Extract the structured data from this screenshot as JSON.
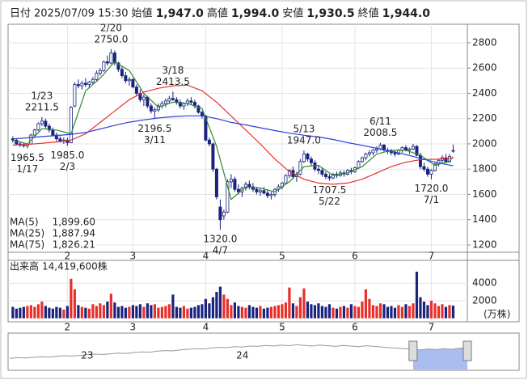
{
  "header": {
    "date_label": "日付",
    "date": "2025/07/09 15:30",
    "fields": [
      {
        "label": "始値",
        "value": "1,947.0",
        "color": "#000000"
      },
      {
        "label": "高値",
        "value": "1,994.0",
        "color": "#e60000"
      },
      {
        "label": "安値",
        "value": "1,930.5",
        "color": "#008000"
      },
      {
        "label": "終値",
        "value": "1,944.0",
        "color": "#000000"
      }
    ]
  },
  "chart_data": {
    "type": "candlestick",
    "xlim": [
      -1.3,
      124.9
    ],
    "ylim": [
      1142,
      2947
    ],
    "yticks": [
      1200,
      1400,
      1600,
      1800,
      2000,
      2200,
      2400,
      2600,
      2800
    ],
    "grid": true,
    "xticks": [
      {
        "value": 15,
        "label": "2"
      },
      {
        "value": 33,
        "label": "3"
      },
      {
        "value": 53,
        "label": "4"
      },
      {
        "value": 74,
        "label": "5"
      },
      {
        "value": 94,
        "label": "6"
      },
      {
        "value": 115,
        "label": "7"
      }
    ],
    "up_color": "#ffffff",
    "down_color": "#1a237e",
    "ohlc": [
      [
        2040,
        2060,
        2010,
        2030
      ],
      [
        2030,
        2045,
        1990,
        2000
      ],
      [
        2000,
        2020,
        1975,
        1990
      ],
      [
        1990,
        2010,
        1970,
        1985
      ],
      [
        1985,
        2000,
        1965.5,
        1995
      ],
      [
        2000,
        2080,
        1995,
        2070
      ],
      [
        2070,
        2120,
        2050,
        2110
      ],
      [
        2110,
        2170,
        2100,
        2160
      ],
      [
        2160,
        2211.5,
        2140,
        2180
      ],
      [
        2180,
        2200,
        2120,
        2140
      ],
      [
        2140,
        2160,
        2090,
        2110
      ],
      [
        2110,
        2130,
        2060,
        2070
      ],
      [
        2070,
        2090,
        2020,
        2040
      ],
      [
        2040,
        2060,
        2010,
        2020
      ],
      [
        2020,
        2050,
        2000,
        2030
      ],
      [
        2030,
        2050,
        1985,
        2010
      ],
      [
        2010,
        2300,
        2005,
        2290
      ],
      [
        2300,
        2490,
        2290,
        2470
      ],
      [
        2470,
        2510,
        2440,
        2460
      ],
      [
        2460,
        2500,
        2430,
        2480
      ],
      [
        2480,
        2520,
        2450,
        2470
      ],
      [
        2470,
        2500,
        2440,
        2490
      ],
      [
        2490,
        2530,
        2470,
        2510
      ],
      [
        2510,
        2580,
        2500,
        2560
      ],
      [
        2560,
        2600,
        2540,
        2580
      ],
      [
        2580,
        2660,
        2570,
        2650
      ],
      [
        2650,
        2700,
        2620,
        2640
      ],
      [
        2640,
        2750,
        2630,
        2720
      ],
      [
        2720,
        2740,
        2620,
        2640
      ],
      [
        2640,
        2650,
        2570,
        2590
      ],
      [
        2590,
        2610,
        2520,
        2540
      ],
      [
        2540,
        2570,
        2480,
        2500
      ],
      [
        2500,
        2530,
        2460,
        2510
      ],
      [
        2510,
        2520,
        2440,
        2450
      ],
      [
        2450,
        2470,
        2380,
        2400
      ],
      [
        2400,
        2430,
        2330,
        2350
      ],
      [
        2350,
        2390,
        2300,
        2370
      ],
      [
        2370,
        2380,
        2280,
        2300
      ],
      [
        2300,
        2320,
        2240,
        2260
      ],
      [
        2260,
        2290,
        2196.5,
        2270
      ],
      [
        2270,
        2320,
        2250,
        2300
      ],
      [
        2300,
        2340,
        2280,
        2320
      ],
      [
        2320,
        2360,
        2290,
        2340
      ],
      [
        2340,
        2380,
        2320,
        2360
      ],
      [
        2360,
        2413.5,
        2340,
        2350
      ],
      [
        2350,
        2370,
        2310,
        2330
      ],
      [
        2330,
        2350,
        2280,
        2300
      ],
      [
        2300,
        2330,
        2270,
        2320
      ],
      [
        2320,
        2360,
        2300,
        2340
      ],
      [
        2340,
        2370,
        2310,
        2330
      ],
      [
        2330,
        2350,
        2280,
        2300
      ],
      [
        2300,
        2310,
        2240,
        2250
      ],
      [
        2250,
        2260,
        2200,
        2220
      ],
      [
        2220,
        2230,
        2020,
        2030
      ],
      [
        2030,
        2050,
        1980,
        2000
      ],
      [
        2000,
        2010,
        1780,
        1800
      ],
      [
        1800,
        1810,
        1560,
        1580
      ],
      [
        1500,
        1560,
        1320,
        1400
      ],
      [
        1430,
        1480,
        1400,
        1460
      ],
      [
        1460,
        1720,
        1450,
        1700
      ],
      [
        1700,
        1760,
        1650,
        1720
      ],
      [
        1720,
        1740,
        1620,
        1640
      ],
      [
        1640,
        1680,
        1600,
        1620
      ],
      [
        1620,
        1660,
        1580,
        1650
      ],
      [
        1650,
        1700,
        1630,
        1680
      ],
      [
        1680,
        1710,
        1640,
        1660
      ],
      [
        1660,
        1690,
        1620,
        1640
      ],
      [
        1640,
        1660,
        1600,
        1620
      ],
      [
        1620,
        1650,
        1590,
        1630
      ],
      [
        1630,
        1660,
        1600,
        1610
      ],
      [
        1610,
        1640,
        1570,
        1590
      ],
      [
        1590,
        1620,
        1560,
        1600
      ],
      [
        1600,
        1650,
        1580,
        1640
      ],
      [
        1640,
        1680,
        1620,
        1660
      ],
      [
        1660,
        1700,
        1640,
        1690
      ],
      [
        1690,
        1760,
        1680,
        1750
      ],
      [
        1750,
        1800,
        1730,
        1790
      ],
      [
        1790,
        1820,
        1720,
        1740
      ],
      [
        1740,
        1780,
        1700,
        1760
      ],
      [
        1760,
        1880,
        1750,
        1860
      ],
      [
        1860,
        1947,
        1850,
        1920
      ],
      [
        1920,
        1930,
        1860,
        1880
      ],
      [
        1880,
        1900,
        1830,
        1850
      ],
      [
        1850,
        1870,
        1780,
        1800
      ],
      [
        1800,
        1830,
        1760,
        1790
      ],
      [
        1790,
        1810,
        1740,
        1760
      ],
      [
        1760,
        1780,
        1720,
        1740
      ],
      [
        1740,
        1760,
        1707.5,
        1730
      ],
      [
        1730,
        1770,
        1720,
        1760
      ],
      [
        1760,
        1780,
        1730,
        1750
      ],
      [
        1750,
        1790,
        1740,
        1770
      ],
      [
        1770,
        1790,
        1740,
        1760
      ],
      [
        1760,
        1800,
        1750,
        1790
      ],
      [
        1790,
        1810,
        1760,
        1780
      ],
      [
        1780,
        1820,
        1770,
        1810
      ],
      [
        1810,
        1870,
        1800,
        1860
      ],
      [
        1860,
        1900,
        1850,
        1890
      ],
      [
        1890,
        1930,
        1870,
        1920
      ],
      [
        1920,
        1950,
        1900,
        1930
      ],
      [
        1930,
        1960,
        1910,
        1950
      ],
      [
        1950,
        1980,
        1930,
        1960
      ],
      [
        1960,
        2008.5,
        1950,
        1990
      ],
      [
        1990,
        2000,
        1940,
        1950
      ],
      [
        1950,
        1970,
        1920,
        1940
      ],
      [
        1940,
        1960,
        1910,
        1930
      ],
      [
        1930,
        1950,
        1900,
        1920
      ],
      [
        1920,
        1960,
        1910,
        1950
      ],
      [
        1950,
        1980,
        1930,
        1970
      ],
      [
        1970,
        1990,
        1940,
        1950
      ],
      [
        1950,
        1970,
        1920,
        1960
      ],
      [
        1960,
        2000,
        1950,
        1980
      ],
      [
        1980,
        1990,
        1900,
        1910
      ],
      [
        1910,
        1930,
        1800,
        1820
      ],
      [
        1820,
        1850,
        1780,
        1800
      ],
      [
        1800,
        1820,
        1740,
        1760
      ],
      [
        1760,
        1800,
        1720,
        1790
      ],
      [
        1790,
        1850,
        1780,
        1840
      ],
      [
        1840,
        1880,
        1820,
        1870
      ],
      [
        1870,
        1910,
        1850,
        1890
      ],
      [
        1890,
        1920,
        1850,
        1860
      ],
      [
        1860,
        1920,
        1850,
        1900
      ],
      [
        1947,
        1994,
        1930.5,
        1944
      ]
    ],
    "series": [
      {
        "name": "MA(5)",
        "color": "#2e8b2e",
        "latest": {
          "value": 1899.6,
          "label": "1,899.60"
        },
        "x": [
          0,
          4,
          8,
          12,
          16,
          20,
          24,
          28,
          32,
          36,
          40,
          44,
          48,
          52,
          56,
          60,
          64,
          68,
          72,
          76,
          80,
          84,
          88,
          92,
          96,
          100,
          104,
          108,
          112,
          116,
          120,
          121
        ],
        "values": [
          2030,
          2000,
          2120,
          2110,
          2080,
          2420,
          2520,
          2650,
          2580,
          2400,
          2290,
          2330,
          2320,
          2280,
          1980,
          1560,
          1660,
          1650,
          1620,
          1700,
          1820,
          1830,
          1750,
          1770,
          1820,
          1920,
          1950,
          1950,
          1910,
          1830,
          1860,
          1899.6
        ]
      },
      {
        "name": "MA(25)",
        "color": "#e8302a",
        "latest": {
          "value": 1887.94,
          "label": "1,887.94"
        },
        "x": [
          0,
          4,
          8,
          12,
          16,
          20,
          24,
          28,
          32,
          36,
          40,
          44,
          48,
          52,
          56,
          60,
          64,
          68,
          72,
          76,
          80,
          84,
          88,
          92,
          96,
          100,
          104,
          108,
          112,
          116,
          120,
          121
        ],
        "values": [
          1990,
          1995,
          2005,
          2015,
          2030,
          2080,
          2170,
          2260,
          2350,
          2410,
          2440,
          2460,
          2465,
          2420,
          2330,
          2220,
          2110,
          2000,
          1880,
          1780,
          1720,
          1690,
          1680,
          1690,
          1720,
          1770,
          1820,
          1855,
          1875,
          1878,
          1886,
          1887.94
        ]
      },
      {
        "name": "MA(75)",
        "color": "#2f3fd8",
        "latest": {
          "value": 1826.21,
          "label": "1,826.21"
        },
        "x": [
          0,
          4,
          8,
          12,
          16,
          20,
          24,
          28,
          32,
          36,
          40,
          44,
          48,
          52,
          56,
          60,
          64,
          68,
          72,
          76,
          80,
          84,
          88,
          92,
          96,
          100,
          104,
          108,
          112,
          116,
          120,
          121
        ],
        "values": [
          2040,
          2048,
          2058,
          2066,
          2076,
          2090,
          2118,
          2146,
          2172,
          2190,
          2205,
          2215,
          2222,
          2222,
          2200,
          2170,
          2150,
          2128,
          2105,
          2085,
          2068,
          2055,
          2035,
          2010,
          1988,
          1965,
          1942,
          1915,
          1885,
          1855,
          1832,
          1826.21
        ]
      }
    ],
    "annotations": [
      {
        "index": 4,
        "kind": "low",
        "date": "1/17",
        "price": {
          "value": 1965.5,
          "label": "1965.5"
        }
      },
      {
        "index": 8,
        "kind": "high",
        "date": "1/23",
        "price": {
          "value": 2211.5,
          "label": "2211.5"
        }
      },
      {
        "index": 15,
        "kind": "low",
        "date": "2/3",
        "price": {
          "value": 1985,
          "label": "1985.0"
        }
      },
      {
        "index": 27,
        "kind": "high",
        "date": "2/20",
        "price": {
          "value": 2750,
          "label": "2750.0"
        }
      },
      {
        "index": 39,
        "kind": "low",
        "date": "3/11",
        "price": {
          "value": 2196.5,
          "label": "2196.5"
        }
      },
      {
        "index": 44,
        "kind": "high",
        "date": "3/18",
        "price": {
          "value": 2413.5,
          "label": "2413.5"
        }
      },
      {
        "index": 57,
        "kind": "low",
        "date": "4/7",
        "price": {
          "value": 1320,
          "label": "1320.0"
        }
      },
      {
        "index": 80,
        "kind": "high",
        "date": "5/13",
        "price": {
          "value": 1947,
          "label": "1947.0"
        }
      },
      {
        "index": 87,
        "kind": "low",
        "date": "5/22",
        "price": {
          "value": 1707.5,
          "label": "1707.5"
        }
      },
      {
        "index": 101,
        "kind": "high",
        "date": "6/11",
        "price": {
          "value": 2008.5,
          "label": "2008.5"
        }
      },
      {
        "index": 115,
        "kind": "low",
        "date": "7/1",
        "price": {
          "value": 1720,
          "label": "1720.0"
        }
      }
    ],
    "volume": {
      "title": "出来高",
      "total": "14,419,600株",
      "unit": "(万株)",
      "up_color": "#e8302a",
      "down_color": "#1a237e",
      "ylim": [
        -400,
        6600
      ],
      "yticks": [
        2000,
        4000
      ],
      "values": [
        1300,
        1100,
        1200,
        1300,
        1400,
        1500,
        1300,
        1600,
        1900,
        1400,
        1200,
        1100,
        1300,
        1200,
        1000,
        1400,
        4500,
        3300,
        1500,
        1300,
        1200,
        1100,
        1600,
        1400,
        1700,
        1500,
        1900,
        2800,
        1800,
        1300,
        1400,
        1200,
        1300,
        1500,
        1400,
        1600,
        1300,
        1700,
        1500,
        1600,
        1200,
        1300,
        1400,
        1600,
        2700,
        1300,
        1200,
        1400,
        1100,
        1200,
        1300,
        1500,
        1600,
        2200,
        1700,
        2400,
        3000,
        3600,
        2700,
        2200,
        1500,
        1800,
        1400,
        1300,
        1200,
        1500,
        1300,
        1200,
        1400,
        1100,
        1200,
        1300,
        1400,
        1500,
        1600,
        1800,
        3500,
        1700,
        1400,
        2400,
        3400,
        1900,
        1600,
        1500,
        1700,
        1400,
        1300,
        1600,
        1200,
        1100,
        1300,
        1400,
        1200,
        1600,
        1400,
        1300,
        1900,
        3300,
        2200,
        1500,
        1400,
        1700,
        1600,
        1300,
        1400,
        1200,
        1500,
        1300,
        1600,
        1400,
        1700,
        5300,
        2400,
        1900,
        1500,
        2000,
        1700,
        1400,
        1600,
        1300,
        1500,
        1442
      ]
    }
  },
  "navigator": {
    "ylim": [
      0,
      100
    ],
    "color": "#999999",
    "selected_color": "#a9bdf0",
    "selected": [
      52,
      59
    ],
    "labels": [
      {
        "text": "23",
        "index": 10
      },
      {
        "text": "24",
        "index": 30
      }
    ],
    "values": [
      22,
      24,
      23,
      25,
      27,
      26,
      28,
      30,
      29,
      31,
      33,
      35,
      34,
      36,
      38,
      37,
      40,
      42,
      41,
      44,
      46,
      45,
      48,
      50,
      52,
      51,
      54,
      56,
      55,
      58,
      57,
      60,
      59,
      62,
      60,
      63,
      61,
      64,
      62,
      60,
      63,
      61,
      59,
      62,
      60,
      58,
      61,
      59,
      57,
      55,
      53,
      52,
      50,
      48,
      51,
      49,
      52,
      50,
      53,
      55
    ]
  }
}
